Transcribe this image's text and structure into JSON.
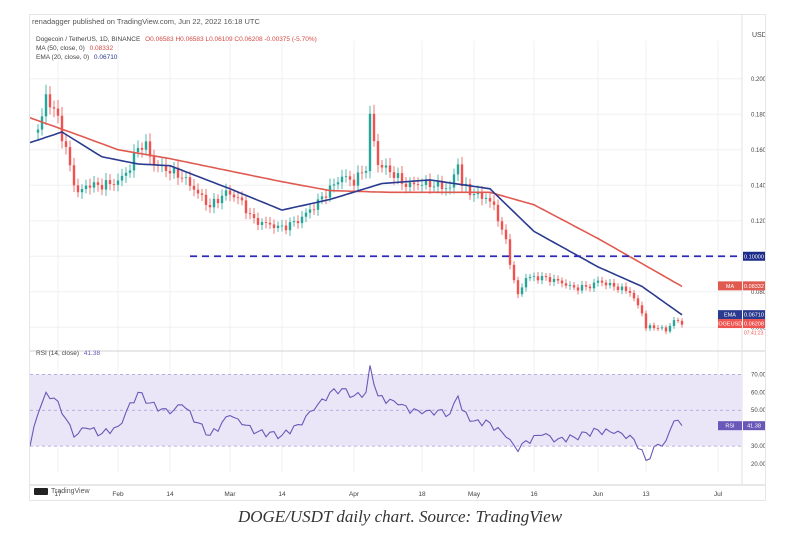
{
  "header": {
    "publisher": "renadagger published on TradingView.com, Jun 22, 2022 16:18 UTC",
    "symbol_line": "Dogecoin / TetherUS, 1D, BINANCE",
    "ohlc_line": "O0.06583  H0.06583  L0.06109  C0.06208  -0.00375 (-5.70%)",
    "ma_label": "MA (50, close, 0)",
    "ma_value": "0.08332",
    "ema_label": "EMA (20, close, 0)",
    "ema_value": "0.06710",
    "rsi_label": "RSI (14, close)",
    "rsi_value": "41.38"
  },
  "axis": {
    "currency": "USDT"
  },
  "badges": {
    "level": "0.10000",
    "ma_tag": "MA",
    "ma_val": "0.08332",
    "ema_tag": "EMA",
    "ema_val": "0.06710",
    "price_tag": "DOGEUSDT",
    "price_val": "0.06208",
    "countdown": "07:41:23",
    "rsi_tag": "RSI",
    "rsi_val": "41.38"
  },
  "branding": {
    "logo_text": "TradingView"
  },
  "caption": "DOGE/USDT daily chart. Source: TradingView",
  "colors": {
    "up": "#26a69a",
    "down": "#ef5350",
    "ma": "#e05a50",
    "ema": "#2a3b8f",
    "level": "#2b2bb8",
    "rsi_line": "#6a58b8",
    "rsi_band": "#ebe6f7"
  },
  "chart_data": [
    {
      "type": "candlestick",
      "title": "Dogecoin / TetherUS, 1D, BINANCE",
      "ylabel": "USDT",
      "ylim": [
        0.05,
        0.21
      ],
      "yticks": [
        0.06,
        0.08,
        0.1,
        0.12,
        0.14,
        0.16,
        0.18,
        0.2
      ],
      "ytick_labels": [
        "0.06000",
        "0.08000",
        "0.10000",
        "0.12000",
        "0.14000",
        "0.16000",
        "0.18000",
        "0.20000"
      ],
      "xtick_labels": [
        {
          "label": "17",
          "date": "2022-01-17"
        },
        {
          "label": "Feb",
          "date": "2022-02-01"
        },
        {
          "label": "14",
          "date": "2022-02-14"
        },
        {
          "label": "Mar",
          "date": "2022-03-01"
        },
        {
          "label": "14",
          "date": "2022-03-14"
        },
        {
          "label": "Apr",
          "date": "2022-04-01"
        },
        {
          "label": "18",
          "date": "2022-04-18"
        },
        {
          "label": "May",
          "date": "2022-05-01"
        },
        {
          "label": "16",
          "date": "2022-05-16"
        },
        {
          "label": "Jun",
          "date": "2022-06-01"
        },
        {
          "label": "13",
          "date": "2022-06-13"
        },
        {
          "label": "Jul",
          "date": "2022-07-01"
        }
      ],
      "horizontal_line": {
        "value": 0.1,
        "style": "dashed"
      },
      "close_anchors": [
        {
          "date": "2022-01-12",
          "close": 0.17
        },
        {
          "date": "2022-01-13",
          "close": 0.178
        },
        {
          "date": "2022-01-14",
          "close": 0.192
        },
        {
          "date": "2022-01-15",
          "close": 0.185
        },
        {
          "date": "2022-01-16",
          "close": 0.182
        },
        {
          "date": "2022-01-17",
          "close": 0.178
        },
        {
          "date": "2022-01-18",
          "close": 0.168
        },
        {
          "date": "2022-01-21",
          "close": 0.142
        },
        {
          "date": "2022-01-22",
          "close": 0.135
        },
        {
          "date": "2022-01-24",
          "close": 0.14
        },
        {
          "date": "2022-01-28",
          "close": 0.14
        },
        {
          "date": "2022-02-01",
          "close": 0.142
        },
        {
          "date": "2022-02-04",
          "close": 0.15
        },
        {
          "date": "2022-02-06",
          "close": 0.162
        },
        {
          "date": "2022-02-08",
          "close": 0.162
        },
        {
          "date": "2022-02-10",
          "close": 0.152
        },
        {
          "date": "2022-02-14",
          "close": 0.148
        },
        {
          "date": "2022-02-17",
          "close": 0.145
        },
        {
          "date": "2022-02-20",
          "close": 0.138
        },
        {
          "date": "2022-02-24",
          "close": 0.128
        },
        {
          "date": "2022-02-28",
          "close": 0.136
        },
        {
          "date": "2022-03-03",
          "close": 0.133
        },
        {
          "date": "2022-03-07",
          "close": 0.12
        },
        {
          "date": "2022-03-14",
          "close": 0.116
        },
        {
          "date": "2022-03-18",
          "close": 0.12
        },
        {
          "date": "2022-03-22",
          "close": 0.128
        },
        {
          "date": "2022-03-26",
          "close": 0.138
        },
        {
          "date": "2022-03-29",
          "close": 0.145
        },
        {
          "date": "2022-04-01",
          "close": 0.142
        },
        {
          "date": "2022-04-04",
          "close": 0.15
        },
        {
          "date": "2022-04-05",
          "close": 0.178
        },
        {
          "date": "2022-04-07",
          "close": 0.152
        },
        {
          "date": "2022-04-10",
          "close": 0.148
        },
        {
          "date": "2022-04-14",
          "close": 0.14
        },
        {
          "date": "2022-04-18",
          "close": 0.141
        },
        {
          "date": "2022-04-22",
          "close": 0.14
        },
        {
          "date": "2022-04-25",
          "close": 0.138
        },
        {
          "date": "2022-04-27",
          "close": 0.153
        },
        {
          "date": "2022-04-28",
          "close": 0.14
        },
        {
          "date": "2022-05-01",
          "close": 0.135
        },
        {
          "date": "2022-05-04",
          "close": 0.133
        },
        {
          "date": "2022-05-06",
          "close": 0.128
        },
        {
          "date": "2022-05-09",
          "close": 0.108
        },
        {
          "date": "2022-05-11",
          "close": 0.086
        },
        {
          "date": "2022-05-12",
          "close": 0.078
        },
        {
          "date": "2022-05-14",
          "close": 0.088
        },
        {
          "date": "2022-05-18",
          "close": 0.088
        },
        {
          "date": "2022-05-22",
          "close": 0.086
        },
        {
          "date": "2022-05-26",
          "close": 0.082
        },
        {
          "date": "2022-05-30",
          "close": 0.083
        },
        {
          "date": "2022-06-01",
          "close": 0.086
        },
        {
          "date": "2022-06-05",
          "close": 0.083
        },
        {
          "date": "2022-06-09",
          "close": 0.08
        },
        {
          "date": "2022-06-12",
          "close": 0.068
        },
        {
          "date": "2022-06-13",
          "close": 0.06
        },
        {
          "date": "2022-06-16",
          "close": 0.06
        },
        {
          "date": "2022-06-18",
          "close": 0.058
        },
        {
          "date": "2022-06-20",
          "close": 0.064
        },
        {
          "date": "2022-06-22",
          "close": 0.062
        }
      ],
      "ma50_anchors": [
        {
          "date": "2022-01-10",
          "value": 0.178
        },
        {
          "date": "2022-01-20",
          "value": 0.17
        },
        {
          "date": "2022-02-01",
          "value": 0.16
        },
        {
          "date": "2022-02-14",
          "value": 0.155
        },
        {
          "date": "2022-03-01",
          "value": 0.148
        },
        {
          "date": "2022-03-14",
          "value": 0.142
        },
        {
          "date": "2022-03-26",
          "value": 0.137
        },
        {
          "date": "2022-04-10",
          "value": 0.136
        },
        {
          "date": "2022-04-25",
          "value": 0.136
        },
        {
          "date": "2022-05-05",
          "value": 0.136
        },
        {
          "date": "2022-05-16",
          "value": 0.129
        },
        {
          "date": "2022-06-01",
          "value": 0.11
        },
        {
          "date": "2022-06-22",
          "value": 0.083
        }
      ],
      "ema20_anchors": [
        {
          "date": "2022-01-10",
          "value": 0.164
        },
        {
          "date": "2022-01-18",
          "value": 0.17
        },
        {
          "date": "2022-01-28",
          "value": 0.156
        },
        {
          "date": "2022-02-06",
          "value": 0.152
        },
        {
          "date": "2022-02-14",
          "value": 0.151
        },
        {
          "date": "2022-03-01",
          "value": 0.138
        },
        {
          "date": "2022-03-14",
          "value": 0.126
        },
        {
          "date": "2022-03-26",
          "value": 0.132
        },
        {
          "date": "2022-04-08",
          "value": 0.141
        },
        {
          "date": "2022-04-20",
          "value": 0.143
        },
        {
          "date": "2022-05-05",
          "value": 0.138
        },
        {
          "date": "2022-05-16",
          "value": 0.114
        },
        {
          "date": "2022-06-01",
          "value": 0.094
        },
        {
          "date": "2022-06-12",
          "value": 0.083
        },
        {
          "date": "2022-06-22",
          "value": 0.067
        }
      ],
      "last_values": {
        "close": 0.06208,
        "ma50": 0.08332,
        "ema20": 0.0671
      }
    },
    {
      "type": "line",
      "title": "RSI (14, close)",
      "ylim": [
        15,
        78
      ],
      "yticks": [
        20,
        30,
        40,
        50,
        60,
        70
      ],
      "ytick_labels": [
        "20.00",
        "30.00",
        "40.00",
        "50.00",
        "60.00",
        "70.00"
      ],
      "band": [
        30,
        70
      ],
      "series": [
        {
          "name": "RSI",
          "points": [
            {
              "date": "2022-01-10",
              "value": 30
            },
            {
              "date": "2022-01-12",
              "value": 48
            },
            {
              "date": "2022-01-14",
              "value": 60
            },
            {
              "date": "2022-01-17",
              "value": 55
            },
            {
              "date": "2022-01-21",
              "value": 35
            },
            {
              "date": "2022-01-24",
              "value": 40
            },
            {
              "date": "2022-01-28",
              "value": 37
            },
            {
              "date": "2022-02-01",
              "value": 41
            },
            {
              "date": "2022-02-06",
              "value": 60
            },
            {
              "date": "2022-02-09",
              "value": 54
            },
            {
              "date": "2022-02-14",
              "value": 48
            },
            {
              "date": "2022-02-17",
              "value": 53
            },
            {
              "date": "2022-02-21",
              "value": 43
            },
            {
              "date": "2022-02-24",
              "value": 36
            },
            {
              "date": "2022-03-01",
              "value": 47
            },
            {
              "date": "2022-03-04",
              "value": 42
            },
            {
              "date": "2022-03-08",
              "value": 38
            },
            {
              "date": "2022-03-14",
              "value": 36
            },
            {
              "date": "2022-03-18",
              "value": 42
            },
            {
              "date": "2022-03-22",
              "value": 50
            },
            {
              "date": "2022-03-26",
              "value": 60
            },
            {
              "date": "2022-03-29",
              "value": 62
            },
            {
              "date": "2022-04-01",
              "value": 58
            },
            {
              "date": "2022-04-04",
              "value": 60
            },
            {
              "date": "2022-04-05",
              "value": 75
            },
            {
              "date": "2022-04-07",
              "value": 58
            },
            {
              "date": "2022-04-12",
              "value": 53
            },
            {
              "date": "2022-04-18",
              "value": 48
            },
            {
              "date": "2022-04-22",
              "value": 50
            },
            {
              "date": "2022-04-25",
              "value": 48
            },
            {
              "date": "2022-04-27",
              "value": 58
            },
            {
              "date": "2022-04-28",
              "value": 50
            },
            {
              "date": "2022-05-01",
              "value": 44
            },
            {
              "date": "2022-05-05",
              "value": 43
            },
            {
              "date": "2022-05-09",
              "value": 35
            },
            {
              "date": "2022-05-12",
              "value": 27
            },
            {
              "date": "2022-05-14",
              "value": 33
            },
            {
              "date": "2022-05-18",
              "value": 36
            },
            {
              "date": "2022-05-22",
              "value": 34
            },
            {
              "date": "2022-05-26",
              "value": 35
            },
            {
              "date": "2022-06-01",
              "value": 39
            },
            {
              "date": "2022-06-05",
              "value": 37
            },
            {
              "date": "2022-06-09",
              "value": 36
            },
            {
              "date": "2022-06-12",
              "value": 28
            },
            {
              "date": "2022-06-13",
              "value": 22
            },
            {
              "date": "2022-06-16",
              "value": 31
            },
            {
              "date": "2022-06-18",
              "value": 33
            },
            {
              "date": "2022-06-20",
              "value": 44
            },
            {
              "date": "2022-06-22",
              "value": 41.38
            }
          ]
        }
      ]
    }
  ]
}
